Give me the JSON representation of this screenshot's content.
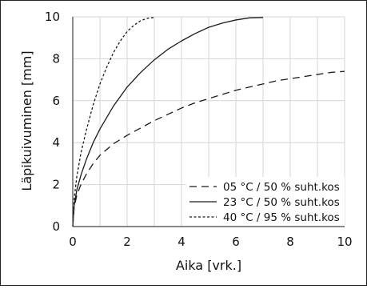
{
  "chart_data": {
    "type": "line",
    "title": "",
    "xlabel": "Aika [vrk.]",
    "ylabel": "Läpikuivuminen [mm]",
    "xlim": [
      0,
      10
    ],
    "ylim": [
      0,
      10
    ],
    "xticks": [
      0,
      2,
      4,
      6,
      8,
      10
    ],
    "yticks": [
      0,
      2,
      4,
      6,
      8,
      10
    ],
    "grid": true,
    "legend_position": "bottom-right",
    "series": [
      {
        "name": "05 °C / 50 % suht.kos",
        "style": "dashed",
        "color": "#1a1a1a",
        "x": [
          0,
          0.05,
          0.15,
          0.3,
          0.5,
          0.75,
          1,
          1.5,
          2,
          2.5,
          3,
          3.5,
          4,
          4.5,
          5,
          5.5,
          6,
          6.5,
          7,
          7.5,
          8,
          8.5,
          9,
          9.5,
          10
        ],
        "y": [
          0,
          0.9,
          1.5,
          2.0,
          2.5,
          3.0,
          3.4,
          3.95,
          4.35,
          4.7,
          5.05,
          5.35,
          5.65,
          5.9,
          6.1,
          6.3,
          6.5,
          6.65,
          6.8,
          6.95,
          7.05,
          7.15,
          7.25,
          7.35,
          7.4
        ]
      },
      {
        "name": "23 °C / 50 % suht.kos",
        "style": "solid",
        "color": "#1a1a1a",
        "x": [
          0,
          0.05,
          0.15,
          0.3,
          0.5,
          0.75,
          1,
          1.5,
          2,
          2.5,
          3,
          3.5,
          4,
          4.5,
          5,
          5.5,
          6,
          6.5,
          7
        ],
        "y": [
          0,
          1.0,
          1.75,
          2.45,
          3.2,
          4.0,
          4.65,
          5.75,
          6.65,
          7.35,
          7.95,
          8.45,
          8.85,
          9.2,
          9.5,
          9.7,
          9.85,
          9.95,
          9.97
        ]
      },
      {
        "name": "40 °C / 95 % suht.kos",
        "style": "dotted",
        "color": "#1a1a1a",
        "x": [
          0,
          0.05,
          0.15,
          0.3,
          0.5,
          0.75,
          1,
          1.25,
          1.5,
          1.75,
          2,
          2.25,
          2.5,
          2.75,
          3.0
        ],
        "y": [
          0,
          1.3,
          2.4,
          3.5,
          4.6,
          5.8,
          6.8,
          7.6,
          8.3,
          8.85,
          9.3,
          9.6,
          9.82,
          9.93,
          9.97
        ]
      }
    ]
  }
}
